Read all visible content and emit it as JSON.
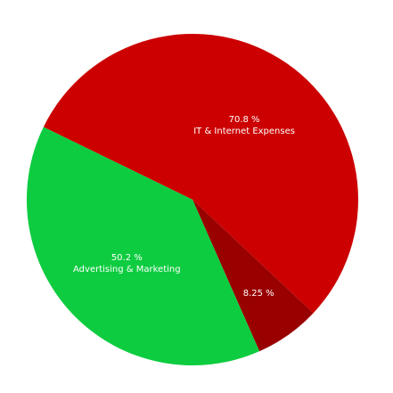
{
  "chart_data": {
    "type": "pie",
    "title": "",
    "slices": [
      {
        "value_label": "70.8 %",
        "category": "IT & Internet Expenses",
        "value": 70.8,
        "color": "#cc0000"
      },
      {
        "value_label": "8.25 %",
        "category": "",
        "value": 8.25,
        "color": "#990000"
      },
      {
        "value_label": "50.2 %",
        "category": "Advertising & Marketing",
        "value": 50.2,
        "color": "#0ecc40"
      }
    ],
    "legend": "none"
  }
}
